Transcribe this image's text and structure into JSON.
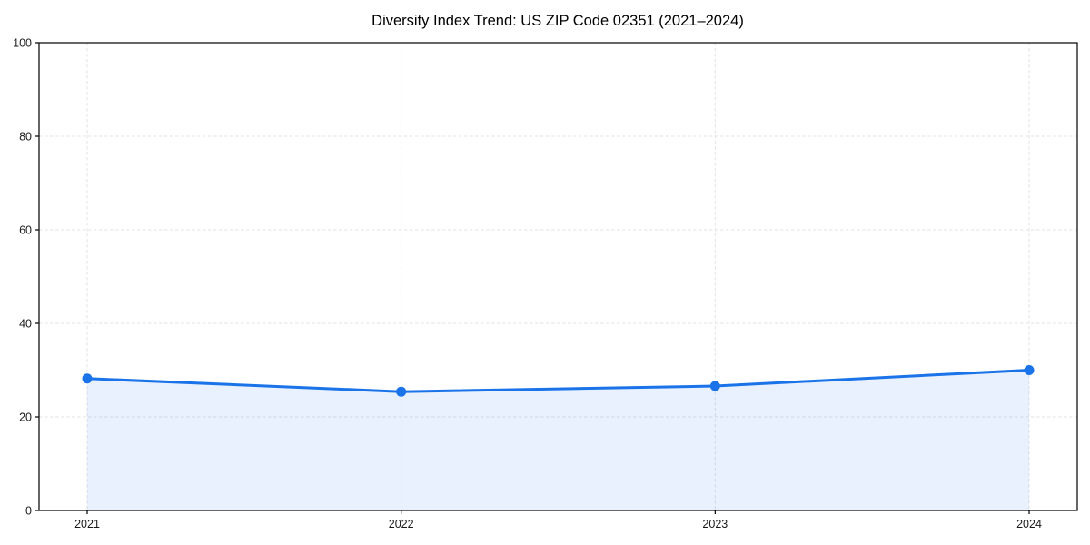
{
  "chart_data": {
    "type": "area",
    "title": "Diversity Index Trend: US ZIP Code 02351 (2021–2024)",
    "x": [
      "2021",
      "2022",
      "2023",
      "2024"
    ],
    "series": [
      {
        "name": "Diversity Index",
        "values": [
          28.2,
          25.4,
          26.6,
          30.0
        ]
      }
    ],
    "xlabel": "",
    "ylabel": "",
    "ylim": [
      0,
      100
    ],
    "yticks": [
      0,
      20,
      40,
      60,
      80,
      100
    ],
    "grid": true,
    "grid_style": "dashed",
    "legend": "none",
    "marker": "circle",
    "colors": {
      "line": "#1a73e8",
      "marker": "#1a73e8",
      "fill": "rgba(26,115,232,0.10)",
      "grid": "#e3e3e3",
      "axis": "#000000",
      "text": "#000000",
      "background": "#ffffff"
    }
  }
}
